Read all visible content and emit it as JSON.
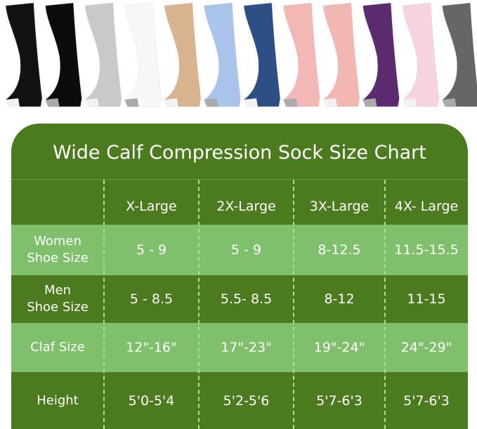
{
  "title": "Wide Calf Compression Sock Size Chart",
  "sock_colors": [
    "#111111",
    "#0c0c0c",
    "#c9c9c9",
    "#f7f7f7",
    "#d8b48e",
    "#a9c3ea",
    "#2d4f86",
    "#f3b7b5",
    "#f2b6b3",
    "#5c2a6e",
    "#f5d3e0",
    "#666666"
  ],
  "colors": {
    "dark_green": "#4b7a1f",
    "light_green": "#80c06c"
  },
  "columns": [
    "X-Large",
    "2X-Large",
    "3X-Large",
    "4X- Large"
  ],
  "rows": [
    {
      "label_line1": "Women",
      "label_line2": "Shoe Size",
      "values": [
        "5 - 9",
        "5 - 9",
        "8-12.5",
        "11.5-15.5"
      ]
    },
    {
      "label_line1": "Men",
      "label_line2": "Shoe Size",
      "values": [
        "5 - 8.5",
        "5.5- 8.5",
        "8-12",
        "11-15"
      ]
    },
    {
      "label_line1": "Claf Size",
      "label_line2": "",
      "values": [
        "12\"-16\"",
        "17\"-23\"",
        "19\"-24\"",
        "24\"-29\""
      ]
    },
    {
      "label_line1": "Height",
      "label_line2": "",
      "values": [
        "5'0-5'4",
        "5'2-5'6",
        "5'7-6'3",
        "5'7-6'3"
      ]
    }
  ]
}
